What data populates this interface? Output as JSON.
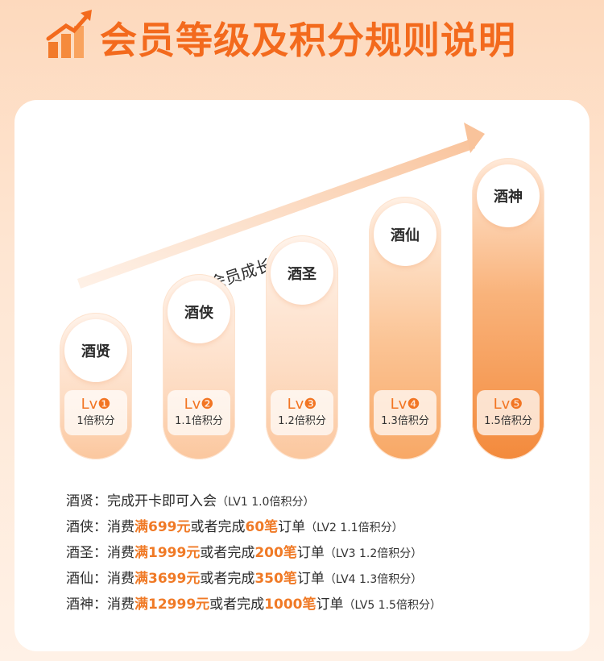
{
  "header": {
    "title": "会员等级及积分规则说明",
    "icon": "growth-chart-icon"
  },
  "growth": {
    "label": "会员成长体系"
  },
  "levels": [
    {
      "name": "酒贤",
      "lv": "Lv❶",
      "multiplier": "1倍积分"
    },
    {
      "name": "酒侠",
      "lv": "Lv❷",
      "multiplier": "1.1倍积分"
    },
    {
      "name": "酒圣",
      "lv": "Lv❸",
      "multiplier": "1.2倍积分"
    },
    {
      "name": "酒仙",
      "lv": "Lv❹",
      "multiplier": "1.3倍积分"
    },
    {
      "name": "酒神",
      "lv": "Lv❺",
      "multiplier": "1.5倍积分"
    }
  ],
  "rules": [
    {
      "name": "酒贤：",
      "text1": "完成开卡即可入会",
      "amount": "",
      "text2": "",
      "count": "",
      "text3": "",
      "note": "（LV1  1.0倍积分）"
    },
    {
      "name": "酒侠：",
      "text1": "消费",
      "amount": "满699元",
      "text2": "或者完成",
      "count": "60笔",
      "text3": "订单",
      "note": "（LV2  1.1倍积分）"
    },
    {
      "name": "酒圣：",
      "text1": "消费",
      "amount": "满1999元",
      "text2": "或者完成",
      "count": "200笔",
      "text3": "订单",
      "note": "（LV3  1.2倍积分）"
    },
    {
      "name": "酒仙：",
      "text1": "消费",
      "amount": "满3699元",
      "text2": "或者完成",
      "count": "350笔",
      "text3": "订单",
      "note": "（LV4  1.3倍积分）"
    },
    {
      "name": "酒神：",
      "text1": "消费",
      "amount": "满12999元",
      "text2": "或者完成",
      "count": "1000笔",
      "text3": "订单",
      "note": "（LV5  1.5倍积分）"
    }
  ],
  "colors": {
    "accent": "#f36a1d",
    "highlight": "#f07a26"
  }
}
